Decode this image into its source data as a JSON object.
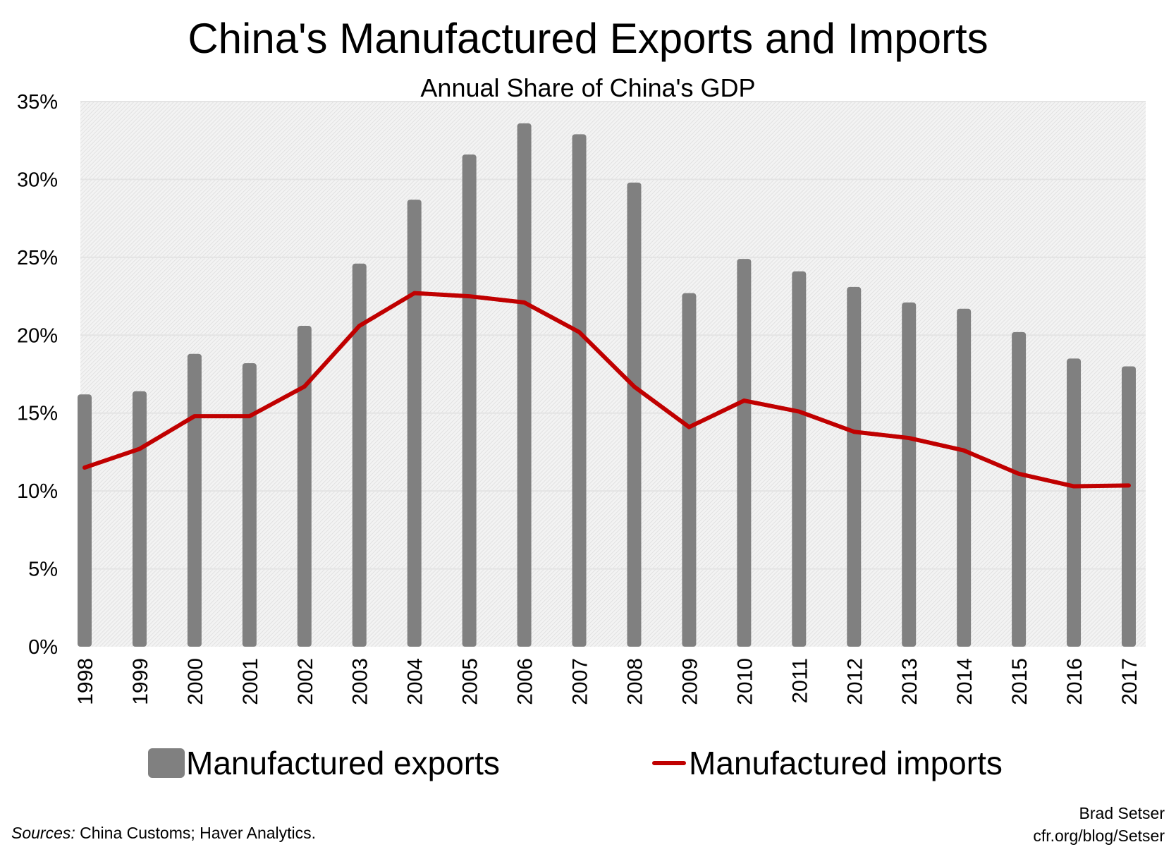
{
  "chart_data": {
    "type": "bar+line",
    "title": "China's Manufactured Exports and Imports",
    "subtitle": "Annual Share of China's GDP",
    "xlabel": "",
    "ylabel": "",
    "ylim": [
      0,
      35
    ],
    "y_ticks": [
      "0%",
      "5%",
      "10%",
      "15%",
      "20%",
      "25%",
      "30%",
      "35%"
    ],
    "grid": true,
    "legend_position": "bottom",
    "categories": [
      "1998",
      "1999",
      "2000",
      "2001",
      "2002",
      "2003",
      "2004",
      "2005",
      "2006",
      "2007",
      "2008",
      "2009",
      "2010",
      "2011",
      "2012",
      "2013",
      "2014",
      "2015",
      "2016",
      "2017"
    ],
    "series": [
      {
        "name": "Manufactured exports",
        "type": "bar",
        "color": "#808080",
        "values": [
          16.2,
          16.4,
          18.8,
          18.2,
          20.6,
          24.6,
          28.7,
          31.6,
          33.6,
          32.9,
          29.8,
          22.7,
          24.9,
          24.1,
          23.1,
          22.1,
          21.7,
          20.2,
          18.5,
          18.0
        ]
      },
      {
        "name": "Manufactured imports",
        "type": "line",
        "color": "#c00000",
        "values": [
          11.5,
          12.7,
          14.8,
          14.8,
          16.7,
          20.6,
          22.7,
          22.5,
          22.1,
          20.2,
          16.7,
          14.1,
          15.8,
          15.1,
          13.8,
          13.4,
          12.6,
          11.1,
          10.3,
          10.35
        ]
      }
    ]
  },
  "footer": {
    "sources_label": "Sources:",
    "sources_text": " China Customs; Haver Analytics.",
    "author": "Brad Setser",
    "url": "cfr.org/blog/Setser"
  }
}
